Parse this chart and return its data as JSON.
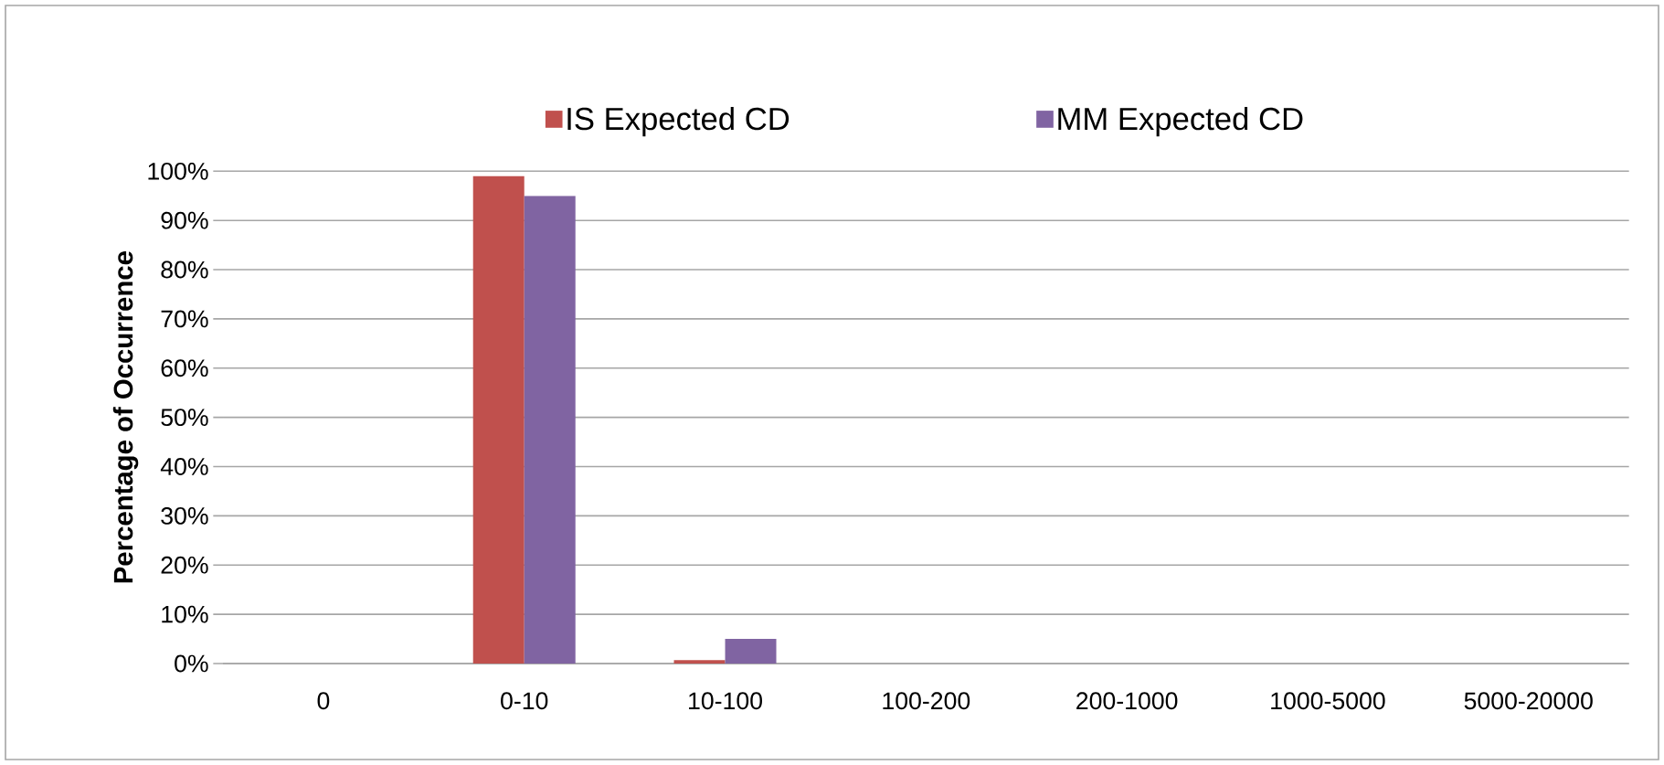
{
  "chart_data": {
    "type": "bar",
    "ylabel": "Percentage of Occurrence",
    "categories": [
      "0",
      "0-10",
      "10-100",
      "100-200",
      "200-1000",
      "1000-5000",
      "5000-20000"
    ],
    "series": [
      {
        "name": "IS Expected  CD",
        "color": "#c0504d",
        "values": [
          0,
          99,
          0.7,
          0,
          0,
          0,
          0
        ]
      },
      {
        "name": "MM Expected  CD",
        "color": "#8064a2",
        "values": [
          0,
          95,
          5,
          0,
          0,
          0,
          0
        ]
      }
    ],
    "ylim": [
      0,
      100
    ],
    "yticks": [
      {
        "value": 0,
        "label": "0%"
      },
      {
        "value": 10,
        "label": "10%"
      },
      {
        "value": 20,
        "label": "20%"
      },
      {
        "value": 30,
        "label": "30%"
      },
      {
        "value": 40,
        "label": "40%"
      },
      {
        "value": 50,
        "label": "50%"
      },
      {
        "value": 60,
        "label": "60%"
      },
      {
        "value": 70,
        "label": "70%"
      },
      {
        "value": 80,
        "label": "80%"
      },
      {
        "value": 90,
        "label": "90%"
      },
      {
        "value": 100,
        "label": "100%"
      }
    ],
    "grid": "y",
    "legend": "top"
  }
}
